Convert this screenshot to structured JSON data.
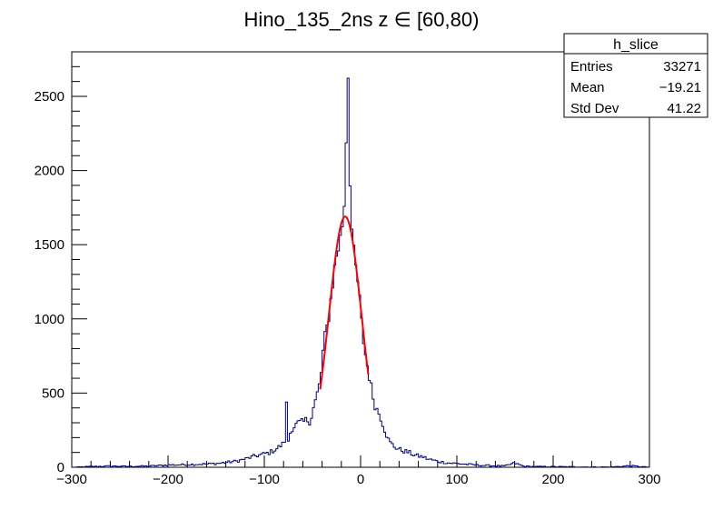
{
  "chart_data": {
    "type": "histogram",
    "title": "Hino_135_2ns z  ∈ [60,80)",
    "xlabel": "",
    "ylabel": "",
    "xlim": [
      -300,
      300
    ],
    "ylim": [
      0,
      2800
    ],
    "x_ticks": [
      -300,
      -200,
      -100,
      0,
      100,
      200,
      300
    ],
    "y_ticks": [
      0,
      500,
      1000,
      1500,
      2000,
      2500
    ],
    "x_tick_labels": [
      "−300",
      "−200",
      "−100",
      "0",
      "100",
      "200",
      "300"
    ],
    "y_tick_labels": [
      "0",
      "500",
      "1000",
      "1500",
      "2000",
      "2500"
    ],
    "bin_width": 2,
    "histogram_color": "#000080",
    "fit_color": "#ff0000",
    "histogram_points": [
      [
        -300,
        0
      ],
      [
        -280,
        5
      ],
      [
        -260,
        8
      ],
      [
        -240,
        6
      ],
      [
        -220,
        8
      ],
      [
        -200,
        15
      ],
      [
        -180,
        18
      ],
      [
        -160,
        22
      ],
      [
        -150,
        25
      ],
      [
        -140,
        32
      ],
      [
        -130,
        40
      ],
      [
        -120,
        55
      ],
      [
        -110,
        75
      ],
      [
        -100,
        90
      ],
      [
        -94,
        100
      ],
      [
        -90,
        115
      ],
      [
        -86,
        130
      ],
      [
        -82,
        150
      ],
      [
        -80,
        160
      ],
      [
        -78,
        200
      ],
      [
        -76,
        640
      ],
      [
        -75,
        180
      ],
      [
        -72,
        260
      ],
      [
        -68,
        280
      ],
      [
        -64,
        300
      ],
      [
        -60,
        300
      ],
      [
        -56,
        320
      ],
      [
        -52,
        310
      ],
      [
        -50,
        380
      ],
      [
        -48,
        420
      ],
      [
        -46,
        470
      ],
      [
        -44,
        520
      ],
      [
        -42,
        580
      ],
      [
        -40,
        700
      ],
      [
        -38,
        850
      ],
      [
        -36,
        900
      ],
      [
        -34,
        980
      ],
      [
        -32,
        1060
      ],
      [
        -30,
        1200
      ],
      [
        -28,
        1280
      ],
      [
        -26,
        1400
      ],
      [
        -24,
        1460
      ],
      [
        -22,
        1500
      ],
      [
        -20,
        1580
      ],
      [
        -18,
        1700
      ],
      [
        -16,
        1850
      ],
      [
        -14,
        2600
      ],
      [
        -13,
        2650
      ],
      [
        -12,
        2200
      ],
      [
        -10,
        1700
      ],
      [
        -8,
        1500
      ],
      [
        -6,
        1380
      ],
      [
        -4,
        1300
      ],
      [
        -2,
        1200
      ],
      [
        0,
        1050
      ],
      [
        2,
        900
      ],
      [
        4,
        800
      ],
      [
        6,
        720
      ],
      [
        8,
        650
      ],
      [
        10,
        580
      ],
      [
        12,
        500
      ],
      [
        14,
        440
      ],
      [
        16,
        400
      ],
      [
        18,
        380
      ],
      [
        20,
        350
      ],
      [
        22,
        320
      ],
      [
        24,
        270
      ],
      [
        26,
        240
      ],
      [
        28,
        200
      ],
      [
        30,
        170
      ],
      [
        35,
        140
      ],
      [
        40,
        120
      ],
      [
        45,
        110
      ],
      [
        50,
        100
      ],
      [
        55,
        85
      ],
      [
        60,
        75
      ],
      [
        65,
        70
      ],
      [
        70,
        55
      ],
      [
        80,
        40
      ],
      [
        90,
        30
      ],
      [
        100,
        25
      ],
      [
        110,
        20
      ],
      [
        120,
        15
      ],
      [
        130,
        12
      ],
      [
        140,
        10
      ],
      [
        150,
        8
      ],
      [
        160,
        28
      ],
      [
        170,
        6
      ],
      [
        180,
        5
      ],
      [
        200,
        4
      ],
      [
        220,
        3
      ],
      [
        240,
        2
      ],
      [
        260,
        2
      ],
      [
        280,
        10
      ],
      [
        300,
        0
      ]
    ],
    "fit": {
      "type": "gaussian",
      "amplitude": 1690,
      "mean": -16,
      "sigma": 17,
      "range": [
        -42,
        8
      ]
    }
  },
  "stats_box": {
    "title": "h_slice",
    "rows": [
      {
        "label": "Entries",
        "value": "33271"
      },
      {
        "label": "Mean",
        "value": "−19.21"
      },
      {
        "label": "Std Dev",
        "value": "41.22"
      }
    ]
  }
}
